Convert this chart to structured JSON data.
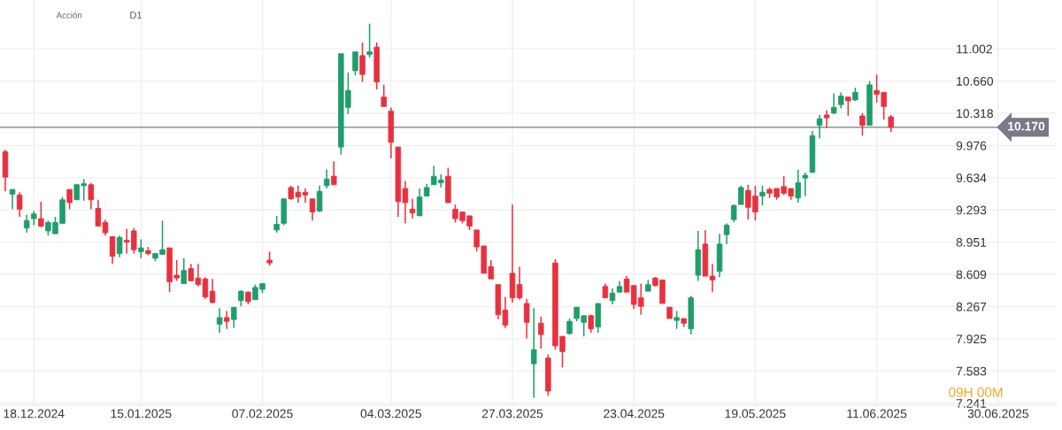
{
  "chart_data": {
    "type": "candlestick",
    "categories": [
      null,
      null,
      null,
      null,
      "18.12.2024",
      null,
      null,
      null,
      null,
      null,
      null,
      null,
      null,
      null,
      null,
      null,
      null,
      null,
      null,
      "15.01.2025",
      null,
      null,
      null,
      null,
      null,
      null,
      null,
      null,
      null,
      null,
      null,
      null,
      null,
      null,
      null,
      null,
      "07.02.2025",
      null,
      null,
      null,
      null,
      null,
      null,
      null,
      null,
      null,
      null,
      null,
      null,
      null,
      null,
      null,
      null,
      null,
      "04.03.2025",
      null,
      null,
      null,
      null,
      null,
      null,
      null,
      null,
      null,
      null,
      null,
      null,
      null,
      null,
      null,
      null,
      "27.03.2025",
      null,
      null,
      null,
      null,
      null,
      null,
      null,
      null,
      null,
      null,
      null,
      null,
      null,
      null,
      null,
      null,
      "23.04.2025",
      null,
      null,
      null,
      null,
      null,
      null,
      null,
      null,
      null,
      null,
      null,
      null,
      null,
      null,
      null,
      null,
      "19.05.2025",
      null,
      null,
      null,
      null,
      null,
      null,
      null,
      null,
      null,
      null,
      null,
      null,
      null,
      null,
      null,
      null,
      "11.06.2025",
      null,
      null,
      null,
      null,
      null,
      null,
      null,
      null,
      null,
      null,
      null,
      null,
      null,
      null,
      null,
      null,
      "30.06.2025"
    ],
    "ohlc": [
      [
        9.91,
        9.93,
        9.49,
        9.64
      ],
      [
        9.46,
        9.51,
        9.3,
        9.51
      ],
      [
        9.45,
        9.48,
        9.22,
        9.3
      ],
      [
        9.1,
        9.24,
        9.05,
        9.18
      ],
      [
        9.2,
        9.28,
        9.13,
        9.25
      ],
      [
        9.2,
        9.38,
        9.11,
        9.12
      ],
      [
        9.07,
        9.18,
        9.02,
        9.16
      ],
      [
        9.04,
        9.22,
        9.04,
        9.16
      ],
      [
        9.15,
        9.43,
        9.15,
        9.4
      ],
      [
        9.51,
        9.51,
        9.3,
        9.37
      ],
      [
        9.4,
        9.57,
        9.4,
        9.56
      ],
      [
        9.55,
        9.62,
        9.39,
        9.57
      ],
      [
        9.56,
        9.58,
        9.3,
        9.4
      ],
      [
        9.31,
        9.4,
        9.12,
        9.12
      ],
      [
        9.16,
        9.19,
        9.02,
        9.05
      ],
      [
        9.01,
        9.01,
        8.72,
        8.8
      ],
      [
        8.83,
        9.02,
        8.79,
        9.0
      ],
      [
        8.97,
        9.09,
        8.83,
        8.95
      ],
      [
        9.07,
        9.1,
        8.83,
        8.87
      ],
      [
        8.85,
        8.98,
        8.78,
        8.89
      ],
      [
        8.86,
        8.9,
        8.81,
        8.83
      ],
      [
        8.78,
        8.83,
        8.75,
        8.83
      ],
      [
        8.82,
        9.18,
        8.82,
        8.87
      ],
      [
        8.89,
        8.89,
        8.42,
        8.53
      ],
      [
        8.6,
        8.76,
        8.54,
        8.57
      ],
      [
        8.51,
        8.78,
        8.51,
        8.65
      ],
      [
        8.67,
        8.72,
        8.54,
        8.54
      ],
      [
        8.57,
        8.72,
        8.48,
        8.5
      ],
      [
        8.56,
        8.58,
        8.35,
        8.37
      ],
      [
        8.43,
        8.56,
        8.3,
        8.31
      ],
      [
        8.08,
        8.25,
        7.99,
        8.15
      ],
      [
        8.15,
        8.22,
        8.03,
        8.11
      ],
      [
        8.13,
        8.26,
        8.04,
        8.26
      ],
      [
        8.33,
        8.44,
        8.27,
        8.43
      ],
      [
        8.42,
        8.43,
        8.29,
        8.32
      ],
      [
        8.34,
        8.5,
        8.34,
        8.47
      ],
      [
        8.45,
        8.51,
        8.41,
        8.51
      ],
      [
        8.76,
        8.85,
        8.7,
        8.73
      ],
      [
        9.08,
        9.23,
        9.05,
        9.14
      ],
      [
        9.15,
        9.41,
        9.13,
        9.41
      ],
      [
        9.53,
        9.55,
        9.4,
        9.41
      ],
      [
        9.48,
        9.55,
        9.37,
        9.43
      ],
      [
        9.48,
        9.52,
        9.37,
        9.45
      ],
      [
        9.41,
        9.41,
        9.18,
        9.27
      ],
      [
        9.28,
        9.55,
        9.27,
        9.49
      ],
      [
        9.55,
        9.72,
        9.52,
        9.62
      ],
      [
        9.65,
        9.81,
        9.56,
        9.56
      ],
      [
        9.96,
        10.95,
        9.88,
        10.95
      ],
      [
        10.38,
        10.75,
        10.31,
        10.56
      ],
      [
        10.77,
        10.97,
        10.72,
        10.97
      ],
      [
        10.93,
        11.07,
        10.65,
        10.73
      ],
      [
        10.94,
        11.27,
        10.91,
        10.97
      ],
      [
        11.02,
        11.07,
        10.57,
        10.65
      ],
      [
        10.49,
        10.62,
        10.39,
        10.39
      ],
      [
        10.34,
        10.38,
        9.84,
        10.01
      ],
      [
        9.96,
        9.96,
        9.22,
        9.38
      ],
      [
        9.52,
        9.6,
        9.15,
        9.37
      ],
      [
        9.3,
        9.41,
        9.2,
        9.26
      ],
      [
        9.23,
        9.52,
        9.23,
        9.43
      ],
      [
        9.44,
        9.57,
        9.44,
        9.53
      ],
      [
        9.56,
        9.76,
        9.56,
        9.65
      ],
      [
        9.58,
        9.67,
        9.53,
        9.61
      ],
      [
        9.65,
        9.74,
        9.37,
        9.37
      ],
      [
        9.3,
        9.35,
        9.16,
        9.2
      ],
      [
        9.27,
        9.27,
        9.15,
        9.18
      ],
      [
        9.23,
        9.23,
        9.08,
        9.12
      ],
      [
        9.08,
        9.08,
        8.85,
        8.9
      ],
      [
        8.91,
        8.91,
        8.62,
        8.62
      ],
      [
        8.69,
        8.76,
        8.56,
        8.56
      ],
      [
        8.5,
        8.5,
        8.13,
        8.18
      ],
      [
        8.23,
        8.37,
        8.04,
        8.07
      ],
      [
        8.62,
        9.35,
        8.31,
        8.36
      ],
      [
        8.5,
        8.69,
        8.34,
        8.36
      ],
      [
        8.3,
        8.35,
        7.93,
        8.1
      ],
      [
        7.66,
        8.25,
        7.3,
        7.81
      ],
      [
        8.09,
        8.16,
        7.82,
        7.97
      ],
      [
        7.72,
        7.76,
        7.32,
        7.37
      ],
      [
        8.73,
        8.77,
        7.81,
        7.85
      ],
      [
        7.95,
        7.95,
        7.62,
        7.79
      ],
      [
        7.98,
        8.14,
        7.97,
        8.11
      ],
      [
        8.14,
        8.26,
        8.11,
        8.26
      ],
      [
        8.1,
        8.17,
        7.95,
        8.17
      ],
      [
        8.17,
        8.18,
        7.99,
        8.03
      ],
      [
        8.05,
        8.3,
        7.99,
        8.3
      ],
      [
        8.48,
        8.51,
        8.36,
        8.36
      ],
      [
        8.33,
        8.46,
        8.29,
        8.41
      ],
      [
        8.42,
        8.54,
        8.42,
        8.48
      ],
      [
        8.56,
        8.59,
        8.42,
        8.42
      ],
      [
        8.49,
        8.49,
        8.24,
        8.29
      ],
      [
        8.36,
        8.51,
        8.18,
        8.27
      ],
      [
        8.43,
        8.55,
        8.43,
        8.5
      ],
      [
        8.57,
        8.58,
        8.48,
        8.49
      ],
      [
        8.55,
        8.55,
        8.3,
        8.3
      ],
      [
        8.26,
        8.26,
        8.14,
        8.14
      ],
      [
        8.12,
        8.22,
        8.03,
        8.15
      ],
      [
        8.14,
        8.14,
        8.05,
        8.09
      ],
      [
        8.03,
        8.38,
        7.97,
        8.36
      ],
      [
        8.6,
        9.07,
        8.54,
        8.87
      ],
      [
        8.93,
        9.08,
        8.59,
        8.59
      ],
      [
        8.59,
        8.72,
        8.42,
        8.55
      ],
      [
        8.64,
        9.04,
        8.58,
        8.93
      ],
      [
        9.03,
        9.15,
        8.93,
        9.13
      ],
      [
        9.19,
        9.35,
        9.16,
        9.34
      ],
      [
        9.35,
        9.55,
        9.35,
        9.53
      ],
      [
        9.5,
        9.56,
        9.19,
        9.32
      ],
      [
        9.44,
        9.55,
        9.18,
        9.27
      ],
      [
        9.44,
        9.55,
        9.34,
        9.48
      ],
      [
        9.51,
        9.53,
        9.42,
        9.47
      ],
      [
        9.52,
        9.52,
        9.4,
        9.43
      ],
      [
        9.54,
        9.65,
        9.45,
        9.47
      ],
      [
        9.52,
        9.52,
        9.4,
        9.44
      ],
      [
        9.42,
        9.72,
        9.37,
        9.58
      ],
      [
        9.63,
        9.69,
        9.44,
        9.66
      ],
      [
        9.69,
        10.13,
        9.69,
        10.08
      ],
      [
        10.19,
        10.3,
        10.05,
        10.26
      ],
      [
        10.3,
        10.35,
        10.16,
        10.27
      ],
      [
        10.32,
        10.53,
        10.31,
        10.38
      ],
      [
        10.41,
        10.54,
        10.37,
        10.5
      ],
      [
        10.49,
        10.49,
        10.29,
        10.45
      ],
      [
        10.46,
        10.59,
        10.45,
        10.54
      ],
      [
        10.29,
        10.32,
        10.08,
        10.19
      ],
      [
        10.19,
        10.66,
        10.19,
        10.62
      ],
      [
        10.56,
        10.73,
        10.43,
        10.52
      ],
      [
        10.54,
        10.54,
        10.25,
        10.39
      ],
      [
        10.28,
        10.3,
        10.12,
        10.17
      ],
      null,
      null,
      null,
      null,
      null,
      null,
      null,
      null,
      null,
      null,
      null,
      null,
      null,
      null,
      null
    ],
    "ylim": [
      7.22,
      11.52
    ],
    "yticks": [
      7.241,
      7.583,
      7.925,
      8.267,
      8.609,
      8.951,
      9.293,
      9.634,
      9.976,
      10.318,
      {
        "value": 10.66,
        "label": "10.660"
      },
      11.002
    ],
    "ref_lines": [
      {
        "axis": "y",
        "value": 10.17,
        "label": "10.170",
        "color": "#787b86"
      }
    ],
    "grid": true,
    "annotations": [
      "Acción",
      "D1",
      "09H 00M"
    ]
  }
}
